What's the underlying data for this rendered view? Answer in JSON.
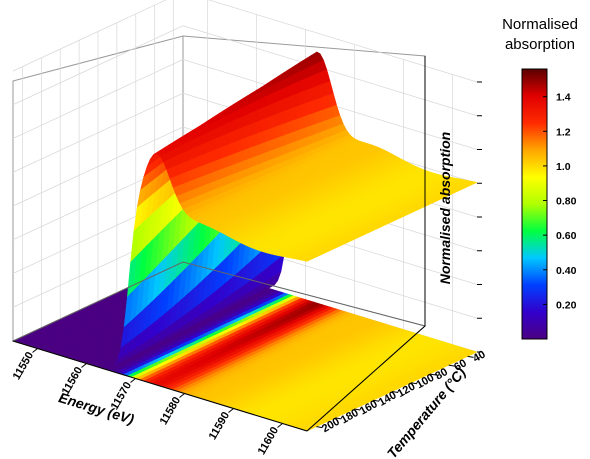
{
  "chart_data": {
    "type": "surface3d",
    "zlabel": "Normalised absorption",
    "colorbar": {
      "title_line1": "Normalised",
      "title_line2": "absorption",
      "ticks": [
        "1.4",
        "1.2",
        "1.0",
        "0.80",
        "0.60",
        "0.40",
        "0.20"
      ],
      "tick_values": [
        1.4,
        1.2,
        1.0,
        0.8,
        0.6,
        0.4,
        0.2
      ],
      "range": [
        0.0,
        1.56
      ],
      "stops": [
        "#4b0082",
        "#3300cc",
        "#0040ff",
        "#00c8ff",
        "#00ff40",
        "#b0ff00",
        "#ffff00",
        "#ffa500",
        "#ff2a00",
        "#e00000",
        "#5a0000"
      ]
    },
    "x": {
      "label": "Energy (eV)",
      "ticks": [
        "11550",
        "11560",
        "11570",
        "11580",
        "11590",
        "11600"
      ],
      "values": [
        11550,
        11560,
        11570,
        11580,
        11590,
        11600
      ],
      "range": [
        11545,
        11605
      ]
    },
    "y": {
      "label": "Temperature (°C)",
      "ticks": [
        "40",
        "60",
        "80",
        "100",
        "120",
        "140",
        "160",
        "180",
        "200"
      ],
      "values": [
        40,
        60,
        80,
        100,
        120,
        140,
        160,
        180,
        200
      ],
      "range": [
        30,
        210
      ]
    },
    "z": {
      "range": [
        0,
        1.6
      ]
    },
    "grid": true
  }
}
